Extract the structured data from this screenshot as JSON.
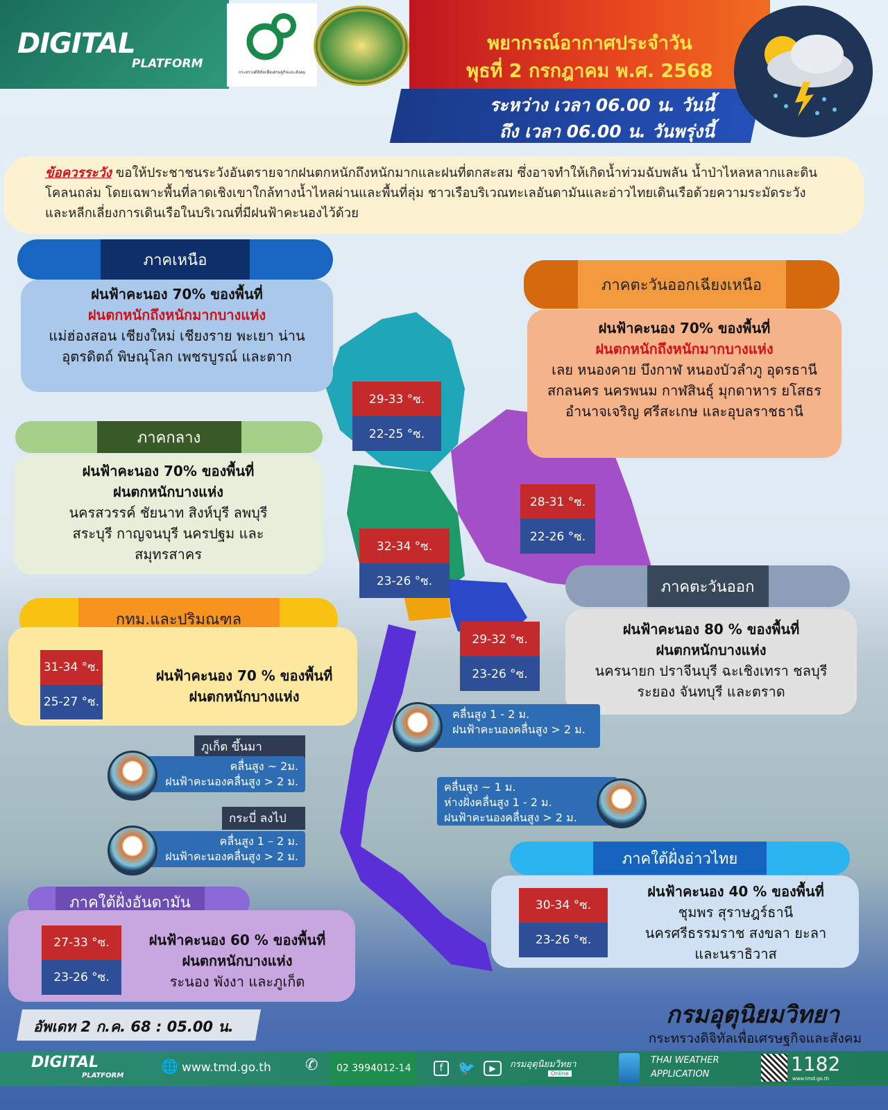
{
  "header": {
    "logo_digital": "DIGITAL",
    "logo_platform": "PLATFORM",
    "ministry_small": "กระทรวงดิจิทัลเพื่อเศรษฐกิจและสังคม",
    "title_line1": "พยากรณ์อากาศประจำวัน",
    "title_line2": "พุธที่ 2 กรกฎาคม พ.ศ. 2568",
    "time_line1": "ระหว่าง เวลา 06.00 น. วันนี้",
    "time_line2": "ถึง เวลา 06.00 น. วันพรุ่งนี้",
    "weather_icon": "sun-cloud-rain-lightning-icon"
  },
  "warning": {
    "label": "ข้อควรระวัง",
    "text": " ขอให้ประชาชนระวังอันตรายจากฝนตกหนักถึงหนักมากและฝนที่ตกสะสม ซึ่งอาจทำให้เกิดน้ำท่วมฉับพลัน น้ำป่าไหลหลากและดินโคลนถล่ม โดยเฉพาะพื้นที่ลาดเชิงเขาใกล้ทางน้ำไหลผ่านและพื้นที่ลุ่ม ชาวเรือบริเวณทะเลอันดามันและอ่าวไทยเดินเรือด้วยความระมัดระวัง และหลีกเลี่ยงการเดินเรือในบริเวณที่มีฝนฟ้าคะนองไว้ด้วย"
  },
  "regions": {
    "north": {
      "name": "ภาคเหนือ",
      "line1": "ฝนฟ้าคะนอง 70% ของพื้นที่",
      "line2": "ฝนตกหนักถึงหนักมากบางแห่ง",
      "areas": "แม่ฮ่องสอน เชียงใหม่ เชียงราย พะเยา น่าน อุตรดิตถ์ พิษณุโลก เพชรบูรณ์ และตาก",
      "temp_max": "29-33 °ซ.",
      "temp_min": "22-25 °ซ."
    },
    "northeast": {
      "name": "ภาคตะวันออกเฉียงเหนือ",
      "line1": "ฝนฟ้าคะนอง 70% ของพื้นที่",
      "line2": "ฝนตกหนักถึงหนักมากบางแห่ง",
      "areas": "เลย หนองคาย บึงกาฬ หนองบัวลำภู อุดรธานี สกลนคร นครพนม กาฬสินธุ์ มุกดาหาร ยโสธร อำนาจเจริญ ศรีสะเกษ และอุบลราชธานี",
      "temp_max": "28-31 °ซ.",
      "temp_min": "22-26 °ซ."
    },
    "central": {
      "name": "ภาคกลาง",
      "line1": "ฝนฟ้าคะนอง 70% ของพื้นที่",
      "line2": "ฝนตกหนักบางแห่ง",
      "areas": "นครสวรรค์ ชัยนาท สิงห์บุรี ลพบุรี สระบุรี กาญจนบุรี นครปฐม และสมุทรสาคร",
      "temp_max": "32-34 °ซ.",
      "temp_min": "23-26 °ซ."
    },
    "east": {
      "name": "ภาคตะวันออก",
      "line1": "ฝนฟ้าคะนอง 80 % ของพื้นที่",
      "line2": "ฝนตกหนักบางแห่ง",
      "areas": "นครนายก ปราจีนบุรี ฉะเชิงเทรา ชลบุรี ระยอง จันทบุรี และตราด",
      "temp_max": "29-32 °ซ.",
      "temp_min": "23-26 °ซ."
    },
    "bangkok": {
      "name": "กทม.และปริมณฑล",
      "line1": "ฝนฟ้าคะนอง 70 % ของพื้นที่",
      "line2": "ฝนตกหนักบางแห่ง",
      "temp_max": "31-34 °ซ.",
      "temp_min": "25-27 °ซ."
    },
    "south_gulf": {
      "name": "ภาคใต้ฝั่งอ่าวไทย",
      "line1": "ฝนฟ้าคะนอง 40 % ของพื้นที่",
      "areas": "ชุมพร สุราษฎร์ธานี นครศรีธรรมราช สงขลา ยะลา และนราธิวาส",
      "temp_max": "30-34 °ซ.",
      "temp_min": "23-26 °ซ."
    },
    "south_andaman": {
      "name": "ภาคใต้ฝั่งอันดามัน",
      "line1": "ฝนฟ้าคะนอง 60 % ของพื้นที่",
      "line2": "ฝนตกหนักบางแห่ง",
      "areas": "ระนอง พังงา และภูเก็ต",
      "temp_max": "27-33 °ซ.",
      "temp_min": "23-26 °ซ."
    }
  },
  "waves": {
    "upper_gulf": {
      "line1": "คลื่นสูง  1 - 2 ม.",
      "line2": "ฝนฟ้าคะนองคลื่นสูง > 2 ม."
    },
    "lower_gulf": {
      "line1": "คลื่นสูง ~ 1 ม.",
      "line2": "ห่างฝั่งคลื่นสูง 1 - 2 ม.",
      "line3": "ฝนฟ้าคะนองคลื่นสูง > 2 ม."
    },
    "phuket_up": {
      "label": "ภูเก็ต ขึ้นมา",
      "line1": "คลื่นสูง ~ 2ม.",
      "line2": "ฝนฟ้าคะนองคลื่นสูง > 2 ม."
    },
    "krabi_down": {
      "label": "กระบี่ ลงไป",
      "line1": "คลื่นสูง 1 – 2 ม.",
      "line2": "ฝนฟ้าคะนองคลื่นสูง > 2 ม."
    }
  },
  "footer": {
    "updated": "อัพเดท 2 ก.ค. 68 : 05.00 น.",
    "org": "กรมอุตุนิยมวิทยา",
    "ministry": "กระทรวงดิจิทัลเพื่อเศรษฐกิจและสังคม",
    "logo_digital": "DIGITAL",
    "logo_platform": "PLATFORM",
    "website": "www.tmd.go.th",
    "phone": "02 3994012-14",
    "social": "กรมอุตุนิยมวิทยา",
    "social_sub": "Online",
    "app_line1": "THAI WEATHER",
    "app_line2": "APPLICATION",
    "hotline": "1182",
    "hotline_sub": "www.tmd.go.th"
  }
}
